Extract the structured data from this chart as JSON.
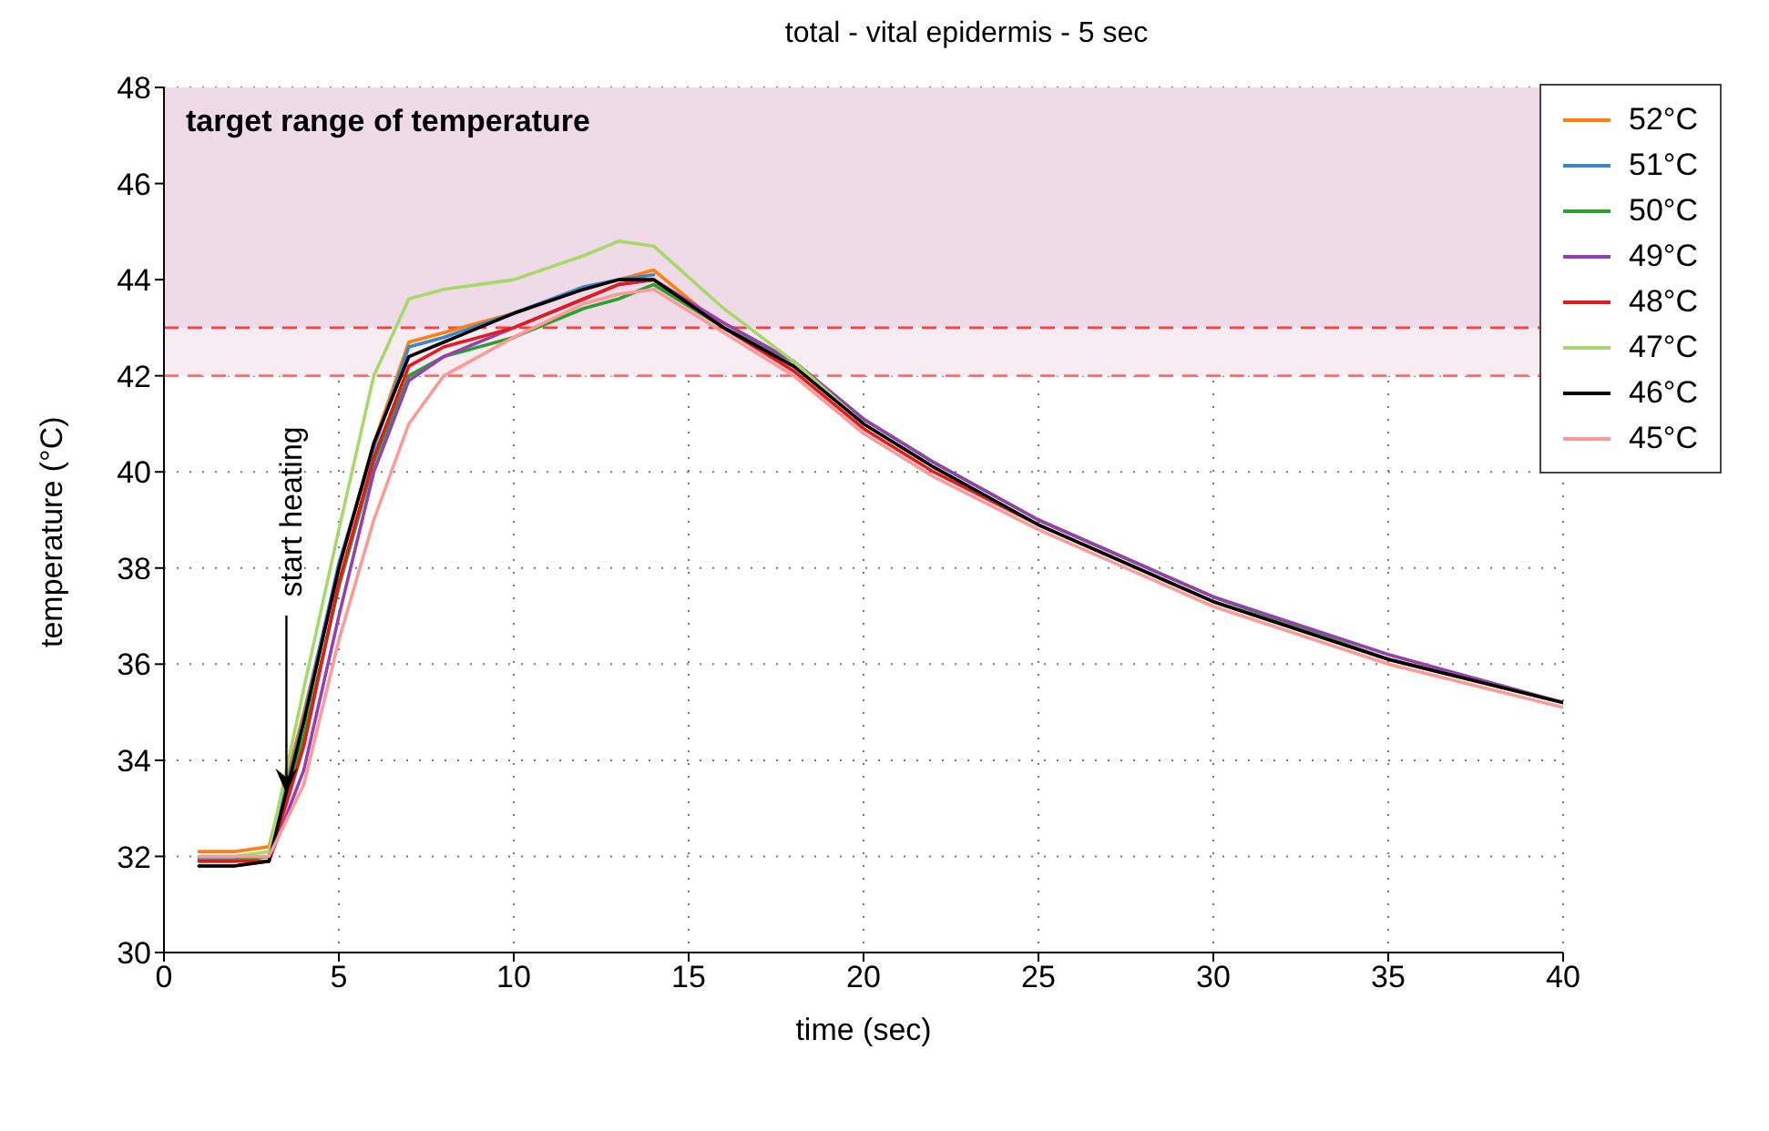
{
  "chart_data": {
    "type": "line",
    "title": "total - vital epidermis - 5 sec",
    "xlabel": "time (sec)",
    "ylabel": "temperature (°C)",
    "x": [
      1,
      2,
      3,
      4,
      5,
      6,
      7,
      8,
      10,
      12,
      13,
      14,
      16,
      18,
      20,
      22,
      25,
      30,
      35,
      40
    ],
    "series": [
      {
        "name": "52°C",
        "color": "#ff7f0e",
        "values": [
          32.1,
          32.1,
          32.2,
          35.0,
          38.0,
          40.6,
          42.7,
          42.9,
          43.3,
          43.8,
          44.0,
          44.2,
          43.0,
          42.2,
          null,
          null,
          null,
          null,
          null,
          null
        ]
      },
      {
        "name": "51°C",
        "color": "#3a86c8",
        "values": [
          31.95,
          31.95,
          32.0,
          34.9,
          38.1,
          40.5,
          42.6,
          42.8,
          43.3,
          43.85,
          44.0,
          44.1,
          null,
          null,
          null,
          null,
          null,
          null,
          null,
          null
        ]
      },
      {
        "name": "50°C",
        "color": "#2ca02c",
        "values": [
          31.9,
          31.9,
          32.0,
          34.5,
          37.6,
          40.2,
          42.0,
          42.4,
          42.8,
          43.4,
          43.6,
          43.9,
          43.0,
          42.3,
          41.1,
          40.2,
          39.0,
          37.4,
          36.1,
          35.2
        ]
      },
      {
        "name": "49°C",
        "color": "#9440b0",
        "values": [
          31.8,
          31.8,
          31.9,
          33.8,
          37.0,
          40.0,
          41.9,
          42.4,
          43.0,
          43.6,
          43.9,
          44.0,
          43.1,
          42.3,
          41.1,
          40.2,
          39.0,
          37.4,
          36.2,
          35.2
        ]
      },
      {
        "name": "48°C",
        "color": "#e41a1c",
        "values": [
          31.9,
          31.9,
          31.9,
          34.3,
          37.7,
          40.3,
          42.2,
          42.6,
          43.0,
          43.6,
          43.9,
          44.0,
          43.0,
          42.1,
          40.9,
          40.0,
          38.9,
          37.3,
          36.1,
          35.2
        ]
      },
      {
        "name": "47°C",
        "color": "#a6d96a",
        "values": [
          32.0,
          32.0,
          32.1,
          35.5,
          38.8,
          42.0,
          43.6,
          43.8,
          44.0,
          44.5,
          44.8,
          44.7,
          43.4,
          42.3,
          41.0,
          40.1,
          38.9,
          37.3,
          36.1,
          35.2
        ]
      },
      {
        "name": "46°C",
        "color": "#000000",
        "values": [
          31.8,
          31.8,
          31.9,
          34.8,
          38.0,
          40.6,
          42.4,
          42.7,
          43.3,
          43.8,
          44.0,
          44.0,
          43.0,
          42.2,
          41.0,
          40.1,
          38.9,
          37.3,
          36.1,
          35.2
        ]
      },
      {
        "name": "45°C",
        "color": "#fb9a99",
        "values": [
          32.0,
          32.0,
          32.0,
          33.5,
          36.5,
          39.0,
          41.0,
          42.0,
          42.8,
          43.5,
          43.7,
          43.8,
          42.9,
          42.0,
          40.8,
          39.9,
          38.8,
          37.2,
          36.0,
          35.1
        ]
      }
    ],
    "xlim": [
      0,
      40
    ],
    "xticks": [
      0,
      5,
      10,
      15,
      20,
      25,
      30,
      35,
      40
    ],
    "ylim": [
      30,
      48
    ],
    "yticks": [
      30,
      32,
      34,
      36,
      38,
      40,
      42,
      44,
      46,
      48
    ],
    "bands": [
      {
        "axis": "y",
        "from": 43,
        "to": 48,
        "label": "target range of temperature",
        "color": "#efdbe7"
      },
      {
        "axis": "y",
        "from": 42,
        "to": 43,
        "color": "#f8ecf3"
      }
    ],
    "ref_lines": [
      {
        "axis": "y",
        "value": 43,
        "color": "#ff3b3b",
        "line_style": "dashed"
      },
      {
        "axis": "y",
        "value": 42,
        "color": "#ff6b6b",
        "line_style": "dashed"
      }
    ],
    "annotations": [
      {
        "text": "start heating",
        "x": 3.5,
        "y": 33.3
      }
    ],
    "grid": true,
    "legend": "top right",
    "marker": "none",
    "line_style": "solid"
  }
}
